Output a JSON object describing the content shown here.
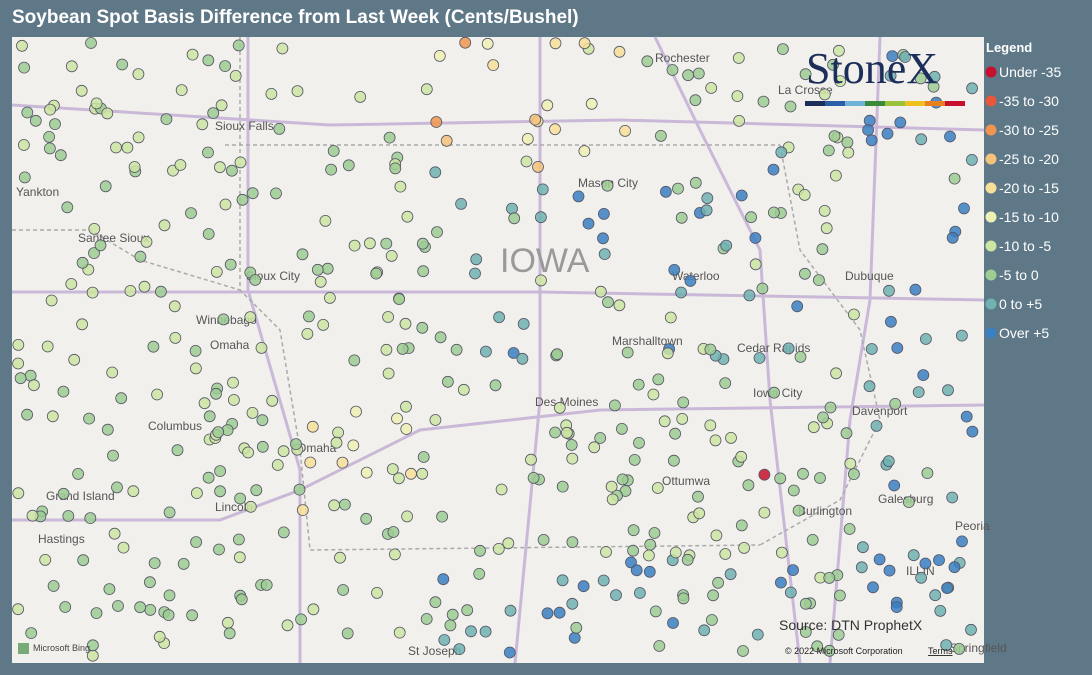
{
  "header": {
    "title": "Soybean Spot Basis Difference from Last Week (Cents/Bushel)"
  },
  "legend": {
    "title": "Legend",
    "items": [
      {
        "label": "Under -35",
        "color": "#c8102e"
      },
      {
        "label": "-35 to -30",
        "color": "#e8573a"
      },
      {
        "label": "-30 to -25",
        "color": "#ef9550"
      },
      {
        "label": "-25 to -20",
        "color": "#f4c27a"
      },
      {
        "label": "-20 to -15",
        "color": "#f6df98"
      },
      {
        "label": "-15 to -10",
        "color": "#eef0b4"
      },
      {
        "label": "-10 to -5",
        "color": "#cde5a2"
      },
      {
        "label": "-5 to 0",
        "color": "#9dcd93"
      },
      {
        "label": "0 to +5",
        "color": "#6fb2b0"
      },
      {
        "label": "Over +5",
        "color": "#3a7fc2"
      }
    ]
  },
  "map": {
    "region": "IOWA",
    "labels": [
      "Rochester",
      "La Crosse",
      "Sioux Falls",
      "Yankton",
      "Santee Sioux",
      "Sioux City",
      "Winnebago",
      "Omaha",
      "Mason City",
      "Waterloo",
      "Dubuque",
      "Marshalltown",
      "Cedar Rapids",
      "Des Moines",
      "Iowa City",
      "Davenport",
      "Columbus",
      "Omaha",
      "Grand Island",
      "Lincoln",
      "Hastings",
      "Ottumwa",
      "Burlington",
      "Galesburg",
      "Peoria",
      "ILLIN",
      "St Joseph",
      "Springfield"
    ]
  },
  "logo": "StoneX",
  "source": "Source: DTN ProphetX",
  "attribution": {
    "bing": "Microsoft Bing",
    "copyright": "© 2022 Microsoft Corporation",
    "terms": "Terms"
  }
}
